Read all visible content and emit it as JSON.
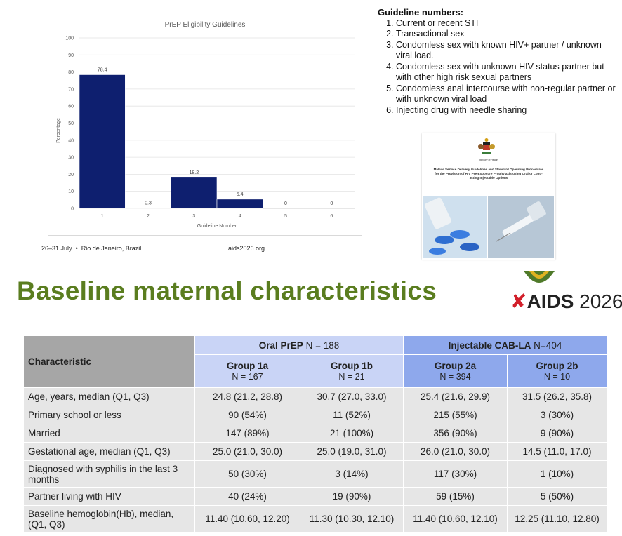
{
  "chart_data": {
    "type": "bar",
    "title": "PrEP Eligibility Guidelines",
    "xlabel": "Guideline Number",
    "ylabel": "Percentage",
    "categories": [
      "1",
      "2",
      "3",
      "4",
      "5",
      "6"
    ],
    "values": [
      78.4,
      0.3,
      18.2,
      5.4,
      0,
      0
    ],
    "data_labels": [
      "78.4",
      "0.3",
      "18.2",
      "5.4",
      "0",
      "0"
    ],
    "ylim": [
      0,
      100
    ],
    "yticks": [
      "0",
      "10",
      "20",
      "30",
      "40",
      "50",
      "60",
      "70",
      "80",
      "90",
      "100"
    ],
    "grid": true,
    "legend": "none",
    "bar_color": "#0e1f6f"
  },
  "footer": {
    "event": "26–31 July",
    "bullet": "•",
    "location": "Rio de Janeiro, Brazil",
    "website": "aids2026.org"
  },
  "guidelines": {
    "title": "Guideline numbers:",
    "items": [
      "Current or recent STI",
      "Transactional sex",
      "Condomless sex with known HIV+ partner / unknown viral load.",
      "Condomless sex with unknown HIV status partner but with other high risk sexual partners",
      " Condomless anal intercourse with non-regular partner or with unknown viral load",
      "Injecting drug with needle sharing"
    ]
  },
  "cover": {
    "ministry": "Ministry of Health",
    "title": "Malawi Service Delivery Guidelines and Standard Operating Procedures for the Provision of HIV Pre-Exposure Prophylaxis using Oral or Long-acting Injectable Options"
  },
  "heading": "Baseline maternal characteristics",
  "logo": {
    "brand": "AIDS",
    "year": "2026",
    "ribbon": "ribbon-icon"
  },
  "table": {
    "characteristic_header": "Characteristic",
    "oral": {
      "name": "Oral PrEP",
      "n": "N = 188"
    },
    "injectable": {
      "name": "Injectable CAB-LA",
      "n": "N=404"
    },
    "groups": [
      {
        "name": "Group 1a",
        "n": "N = 167"
      },
      {
        "name": "Group 1b",
        "n": "N = 21"
      },
      {
        "name": "Group 2a",
        "n": "N = 394"
      },
      {
        "name": "Group 2b",
        "n": "N = 10"
      }
    ],
    "rows": [
      {
        "label": "Age, years, median (Q1, Q3)",
        "values": [
          "24.8 (21.2, 28.8)",
          "30.7 (27.0, 33.0)",
          "25.4 (21.6, 29.9)",
          "31.5 (26.2, 35.8)"
        ]
      },
      {
        "label": "Primary school or less",
        "values": [
          "90 (54%)",
          "11 (52%)",
          "215 (55%)",
          "3 (30%)"
        ]
      },
      {
        "label": "Married",
        "values": [
          "147 (89%)",
          "21 (100%)",
          "356 (90%)",
          "9 (90%)"
        ]
      },
      {
        "label": "Gestational age, median (Q1, Q3)",
        "values": [
          "25.0 (21.0, 30.0)",
          "25.0 (19.0, 31.0)",
          "26.0 (21.0, 30.0)",
          "14.5 (11.0, 17.0)"
        ]
      },
      {
        "label": "Diagnosed with syphilis in the last 3 months",
        "values": [
          "50 (30%)",
          "3 (14%)",
          "117 (30%)",
          "1 (10%)"
        ]
      },
      {
        "label": "Partner living with HIV",
        "values": [
          "40 (24%)",
          "19 (90%)",
          "59 (15%)",
          "5 (50%)"
        ]
      },
      {
        "label": "Baseline hemoglobin(Hb), median, (Q1, Q3)",
        "values": [
          "11.40 (10.60, 12.20)",
          "11.30 (10.30, 12.10)",
          "11.40 (10.60, 12.10)",
          "12.25 (11.10, 12.80)"
        ]
      }
    ]
  }
}
